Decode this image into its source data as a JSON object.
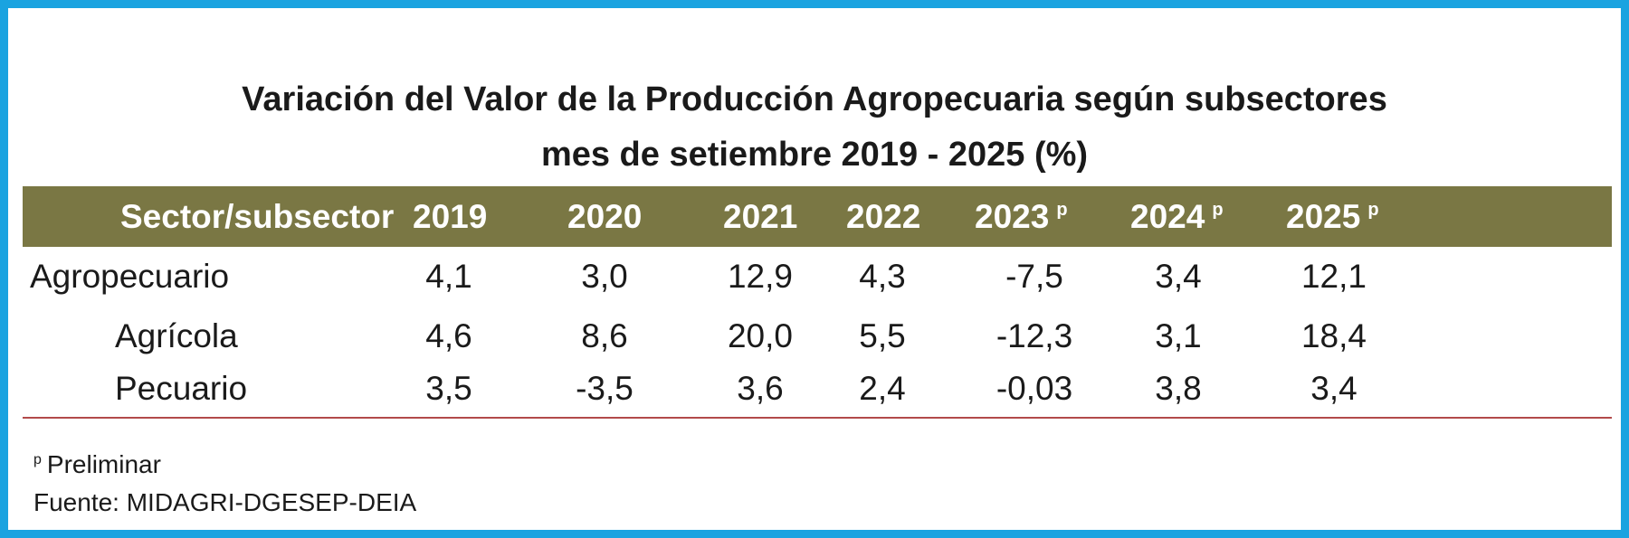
{
  "title": {
    "line1": "Variación del Valor de la Producción Agropecuaria según subsectores",
    "line2": "mes de setiembre 2019 - 2025 (%)"
  },
  "table": {
    "header_label": "Sector/subsector",
    "columns": [
      {
        "year": "2019",
        "mark": ""
      },
      {
        "year": "2020",
        "mark": ""
      },
      {
        "year": "2021",
        "mark": ""
      },
      {
        "year": "2022",
        "mark": ""
      },
      {
        "year": "2023",
        "mark": "p"
      },
      {
        "year": "2024",
        "mark": "p"
      },
      {
        "year": "2025",
        "mark": "p"
      }
    ],
    "rows": [
      {
        "label": "Agropecuario",
        "values": [
          "4,1",
          "3,0",
          "12,9",
          "4,3",
          "-7,5",
          "3,4",
          "12,1"
        ]
      },
      {
        "label": "Agrícola",
        "values": [
          "4,6",
          "8,6",
          "20,0",
          "5,5",
          "-12,3",
          "3,1",
          "18,4"
        ]
      },
      {
        "label": "Pecuario",
        "values": [
          "3,5",
          "-3,5",
          "3,6",
          "2,4",
          "-0,03",
          "3,8",
          "3,4"
        ]
      }
    ]
  },
  "notes": {
    "preliminary_mark": "p",
    "preliminary_text": "Preliminar",
    "source": "Fuente:  MIDAGRI-DGESEP-DEIA"
  },
  "colors": {
    "border": "#1aa3e0",
    "header_band": "#7a7744",
    "bottom_rule": "#b24a4a"
  }
}
